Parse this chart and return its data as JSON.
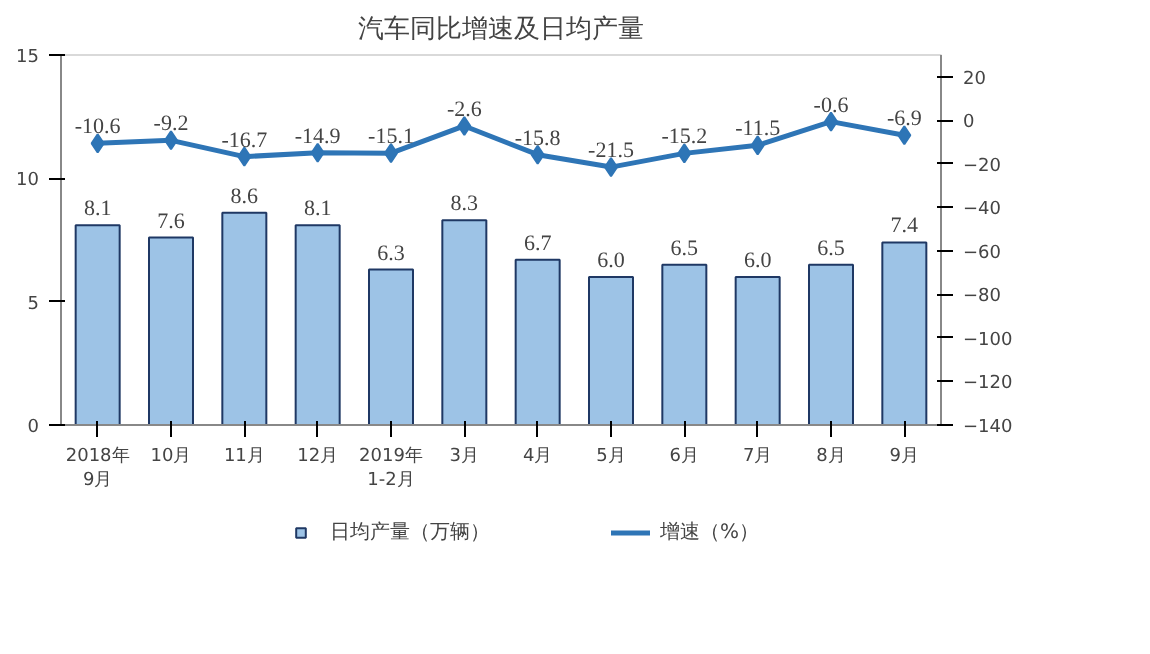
{
  "chart_data": {
    "type": "bar",
    "title": "汽车同比增速及日均产量",
    "categories": [
      "2018年\n9月",
      "10月",
      "11月",
      "12月",
      "2019年\n1-2月",
      "3月",
      "4月",
      "5月",
      "6月",
      "7月",
      "8月",
      "9月"
    ],
    "series": [
      {
        "name": "日均产量（万辆）",
        "color": "#9dc3e6",
        "values": [
          8.1,
          7.6,
          8.6,
          8.1,
          6.3,
          8.3,
          6.7,
          6.0,
          6.5,
          6.0,
          6.5,
          7.4
        ],
        "value_labels": [
          "8.1",
          "7.6",
          "8.6",
          "8.1",
          "6.3",
          "8.3",
          "6.7",
          "6.0",
          "6.5",
          "6.0",
          "6.5",
          "7.4"
        ]
      },
      {
        "name": "增速（%）",
        "type": "line",
        "axis": "y2",
        "color": "#2e75b6",
        "marker": "diamond",
        "values": [
          -10.6,
          -9.2,
          -16.7,
          -14.9,
          -15.1,
          -2.6,
          -15.8,
          -21.5,
          -15.2,
          -11.5,
          -0.6,
          -6.9
        ]
      }
    ],
    "ylim": [
      0,
      15
    ],
    "yticks": [
      0,
      5,
      10,
      15
    ],
    "y2lim": [
      -140,
      30
    ],
    "y2ticks": [
      -140,
      -120,
      -100,
      -80,
      -60,
      -40,
      -20,
      0,
      20
    ],
    "data_labels": true,
    "legend": "bottom",
    "grid": false
  }
}
